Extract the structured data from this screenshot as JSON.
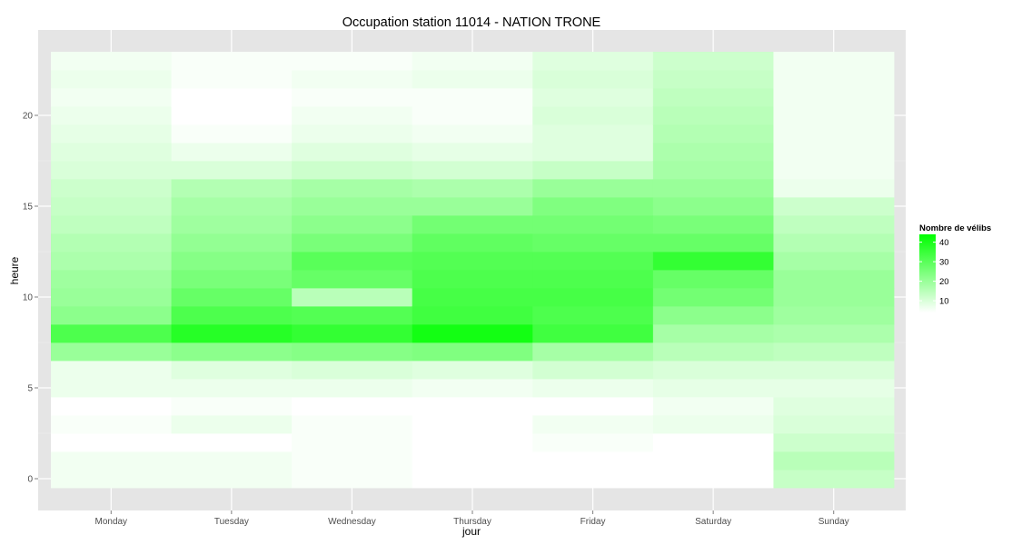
{
  "chart_data": {
    "type": "heatmap",
    "title": "Occupation station 11014 - NATION TRONE",
    "xlabel": "jour",
    "ylabel": "heure",
    "categories": [
      "Monday",
      "Tuesday",
      "Wednesday",
      "Thursday",
      "Friday",
      "Saturday",
      "Sunday"
    ],
    "hours": [
      0,
      1,
      2,
      3,
      4,
      5,
      6,
      7,
      8,
      9,
      10,
      11,
      12,
      13,
      14,
      15,
      16,
      17,
      18,
      19,
      20,
      21,
      22,
      23
    ],
    "y_ticks": [
      0,
      5,
      10,
      15,
      20
    ],
    "ylim": [
      -0.5,
      23.5
    ],
    "grid": true,
    "legend": {
      "title": "Nombre de vélibs",
      "ticks": [
        10,
        20,
        30,
        40
      ],
      "range": [
        4,
        44
      ],
      "position": "right",
      "low_color": "#ffffff",
      "high_color": "#00ff00"
    },
    "values": [
      [
        6,
        6,
        4,
        5,
        4,
        7,
        7,
        20,
        32,
        22,
        20,
        19,
        17,
        16,
        14,
        13,
        12,
        10,
        9,
        8,
        7,
        6,
        7,
        6
      ],
      [
        6,
        6,
        4,
        7,
        5,
        7,
        9,
        22,
        38,
        32,
        28,
        25,
        23,
        21,
        19,
        18,
        16,
        10,
        7,
        5,
        4,
        4,
        5,
        5
      ],
      [
        5,
        5,
        5,
        5,
        4,
        7,
        10,
        23,
        36,
        31,
        15,
        28,
        30,
        25,
        22,
        20,
        18,
        12,
        9,
        7,
        6,
        5,
        6,
        5
      ],
      [
        4,
        4,
        3,
        4,
        4,
        6,
        9,
        24,
        41,
        34,
        33,
        32,
        31,
        29,
        26,
        20,
        17,
        11,
        8,
        6,
        5,
        5,
        7,
        6
      ],
      [
        2,
        2,
        5,
        6,
        3,
        7,
        11,
        18,
        34,
        32,
        33,
        32,
        31,
        28,
        26,
        24,
        20,
        13,
        9,
        9,
        10,
        9,
        10,
        9
      ],
      [
        4,
        4,
        4,
        7,
        6,
        8,
        10,
        15,
        18,
        22,
        26,
        28,
        36,
        28,
        25,
        22,
        20,
        18,
        17,
        16,
        15,
        14,
        13,
        12
      ],
      [
        13,
        15,
        12,
        10,
        9,
        8,
        10,
        14,
        17,
        19,
        20,
        20,
        18,
        16,
        14,
        12,
        7,
        6,
        6,
        6,
        6,
        6,
        6,
        6
      ]
    ]
  }
}
